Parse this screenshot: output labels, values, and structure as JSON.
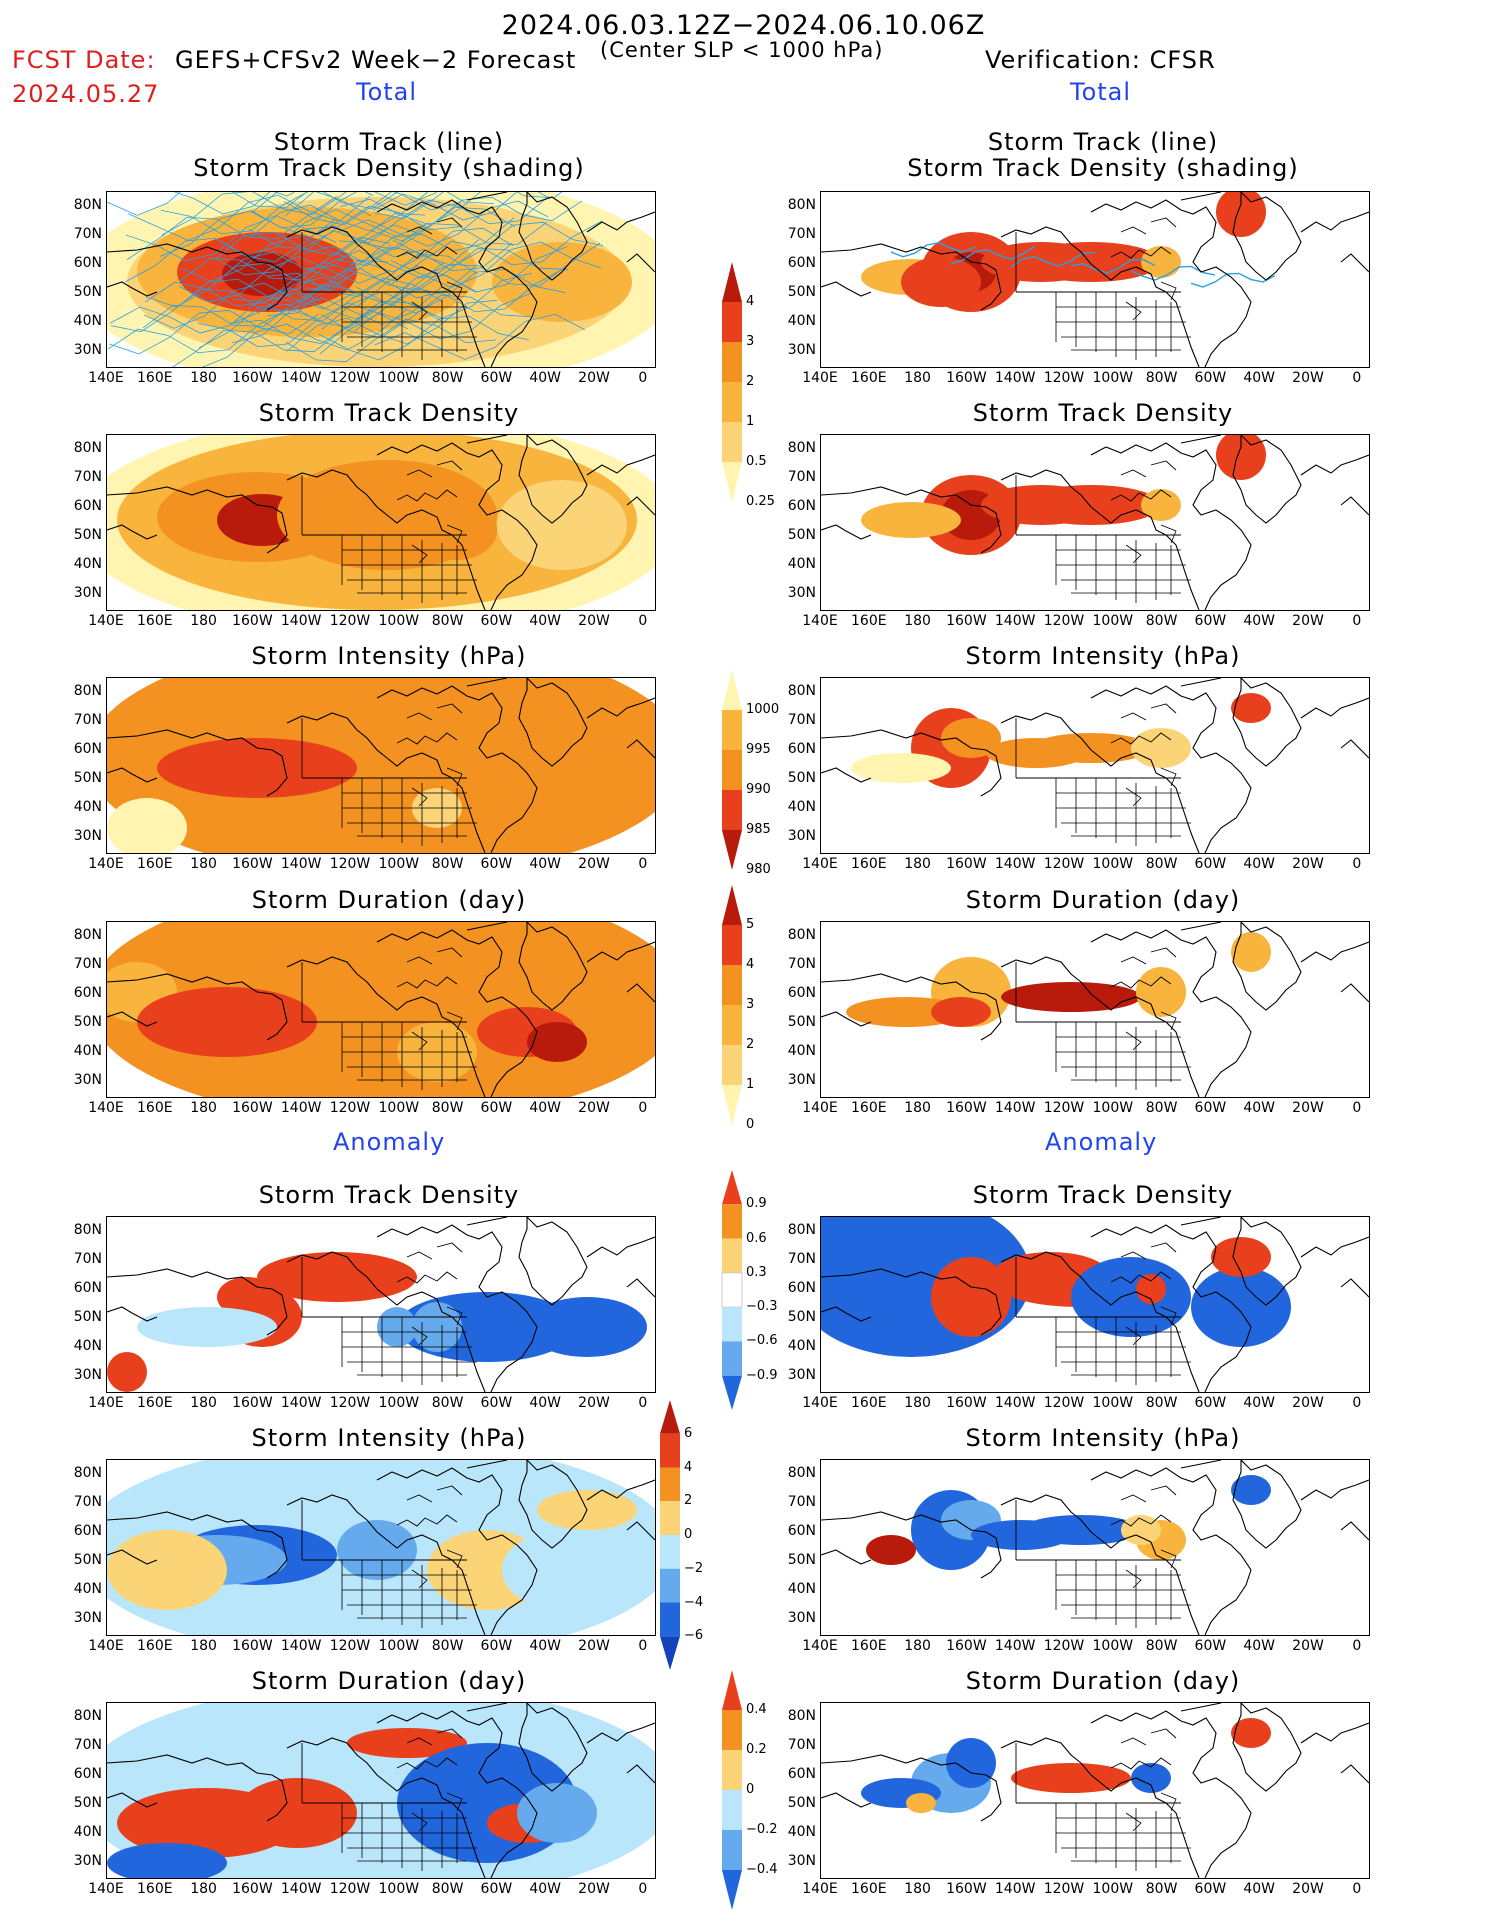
{
  "header": {
    "period": "2024.06.03.12Z−2024.06.10.06Z",
    "fcst_label": "FCST Date:",
    "fcst_date": "2024.05.27",
    "model": "GEFS+CFSv2 Week−2 Forecast",
    "criterion": "(Center SLP < 1000 hPa)",
    "verification": "Verification: CFSR"
  },
  "sections": {
    "total": "Total",
    "anomaly": "Anomaly"
  },
  "panel_titles": {
    "track_line": "Storm Track (line)",
    "track_shading": "Storm Track Density (shading)",
    "density": "Storm Track Density",
    "intensity": "Storm Intensity (hPa)",
    "duration": "Storm Duration (day)"
  },
  "axes": {
    "lat_ticks": [
      "80N",
      "70N",
      "60N",
      "50N",
      "40N",
      "30N"
    ],
    "lon_ticks": [
      "140E",
      "160E",
      "180",
      "160W",
      "140W",
      "120W",
      "100W",
      "80W",
      "60W",
      "40W",
      "20W",
      "0"
    ]
  },
  "colorbars": {
    "total_density": {
      "labels": [
        "4",
        "3",
        "2",
        "1",
        "0.5",
        "0.25"
      ],
      "colors": [
        "#b81a0c",
        "#e8401c",
        "#f39221",
        "#f8b43c",
        "#fbd477",
        "#fff5b0"
      ]
    },
    "total_intensity": {
      "labels": [
        "1000",
        "995",
        "990",
        "985",
        "980"
      ],
      "colors": [
        "#fff5b0",
        "#f8b43c",
        "#f39221",
        "#e8401c",
        "#b81a0c"
      ]
    },
    "total_duration": {
      "labels": [
        "5",
        "4",
        "3",
        "2",
        "1",
        "0"
      ],
      "colors": [
        "#b81a0c",
        "#e8401c",
        "#f39221",
        "#f8b43c",
        "#fbd477",
        "#fff5b0"
      ]
    },
    "anom_density": {
      "labels": [
        "0.9",
        "0.6",
        "0.3",
        "−0.3",
        "−0.6",
        "−0.9"
      ],
      "colors": [
        "#e8401c",
        "#f39221",
        "#fbd477",
        "#ffffff",
        "#b9e6fb",
        "#66aaee",
        "#2266dd"
      ]
    },
    "anom_intensity": {
      "labels": [
        "6",
        "4",
        "2",
        "0",
        "−2",
        "−4",
        "−6"
      ],
      "colors": [
        "#b81a0c",
        "#e8401c",
        "#f39221",
        "#fbd477",
        "#b9e6fb",
        "#66aaee",
        "#2266dd",
        "#1144bb"
      ]
    },
    "anom_duration": {
      "labels": [
        "0.4",
        "0.2",
        "0",
        "−0.2",
        "−0.4"
      ],
      "colors": [
        "#e8401c",
        "#f39221",
        "#fbd477",
        "#b9e6fb",
        "#66aaee",
        "#2266dd"
      ]
    }
  }
}
